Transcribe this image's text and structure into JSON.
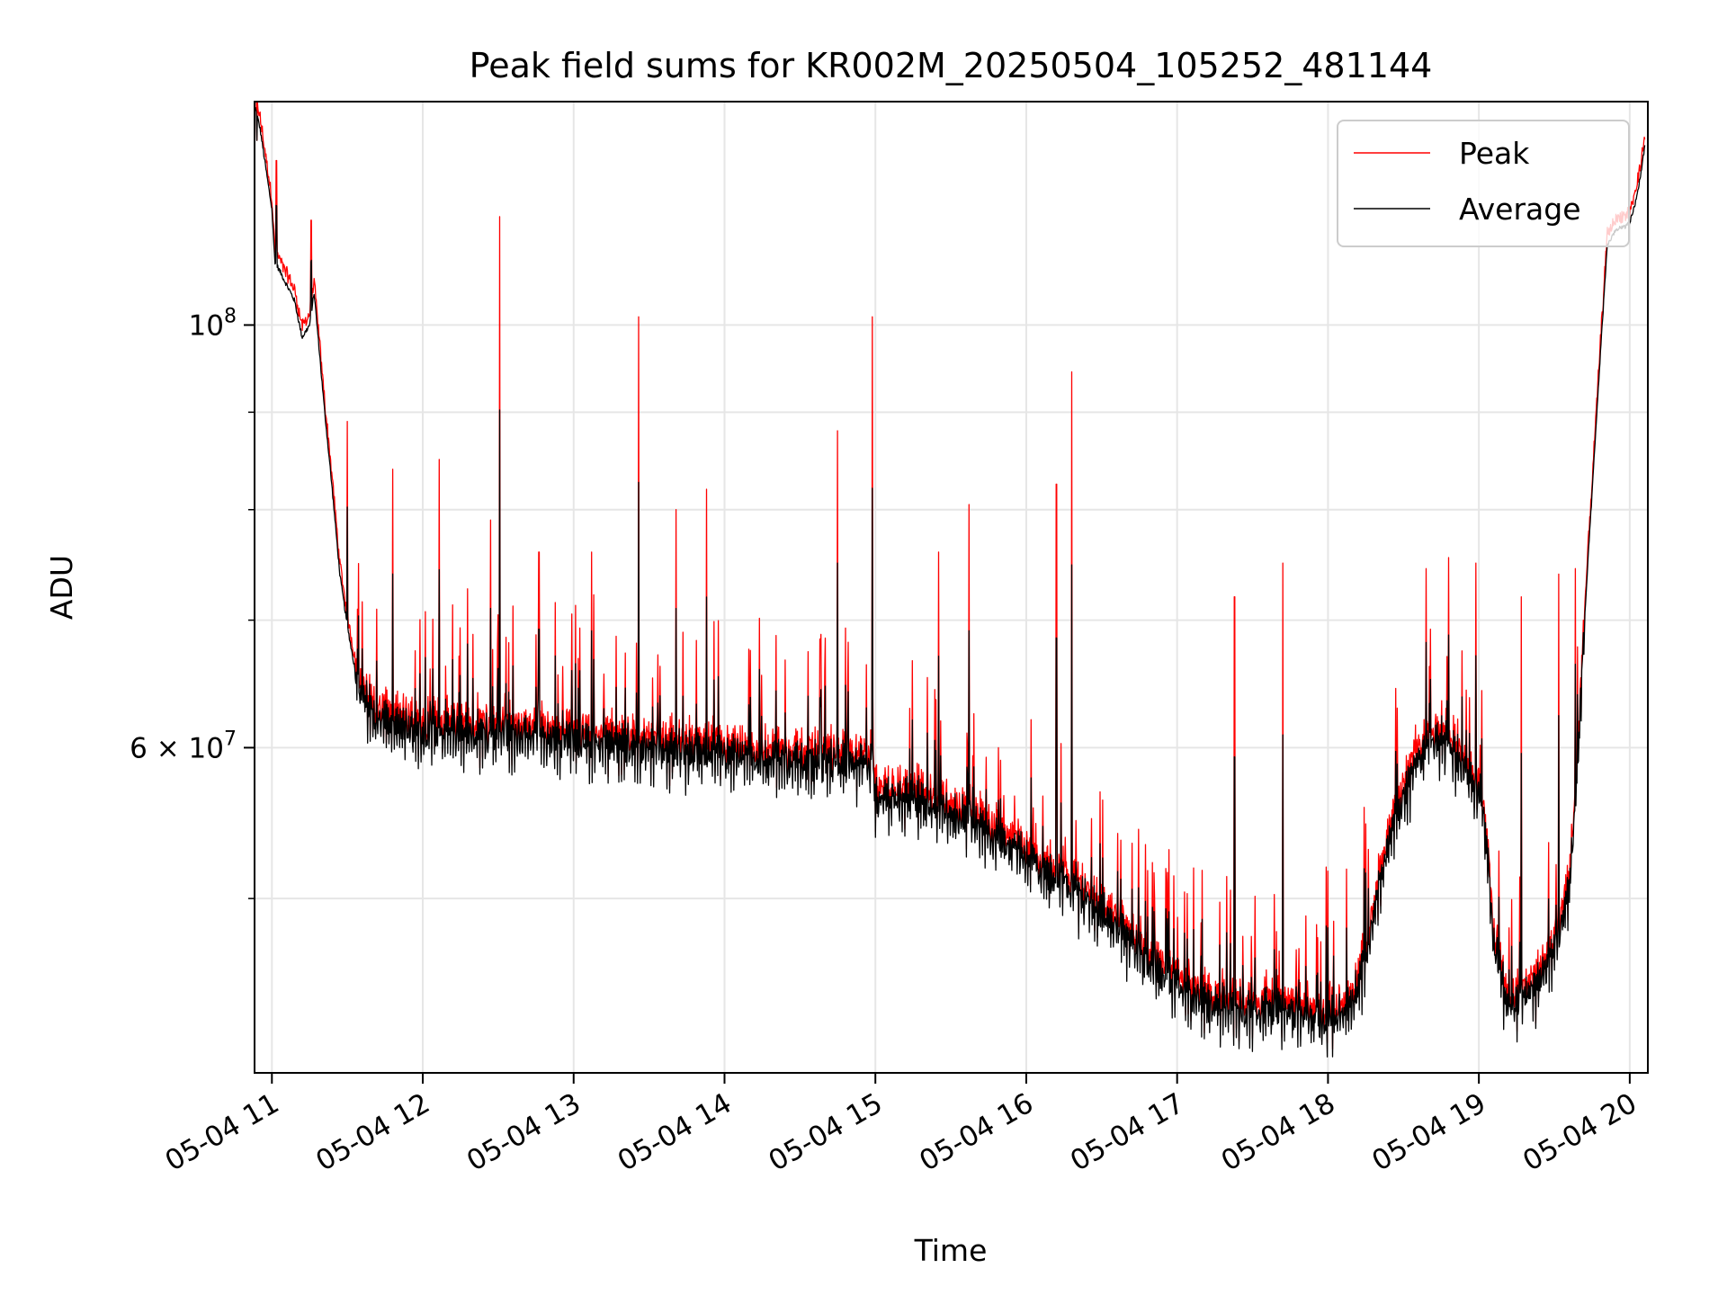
{
  "chart_data": {
    "type": "line",
    "title": "Peak field sums for KR002M_20250504_105252_481144",
    "xlabel": "Time",
    "ylabel": "ADU",
    "x_unit": "hours (decimal hour of day, 2025-05-04)",
    "xlim": [
      10.885,
      20.12
    ],
    "ylim": [
      40500000,
      131000000
    ],
    "yscale": "log",
    "grid": true,
    "legend_position": "top-right",
    "x_ticks": [
      {
        "value": 11,
        "label": "05-04 11"
      },
      {
        "value": 12,
        "label": "05-04 12"
      },
      {
        "value": 13,
        "label": "05-04 13"
      },
      {
        "value": 14,
        "label": "05-04 14"
      },
      {
        "value": 15,
        "label": "05-04 15"
      },
      {
        "value": 16,
        "label": "05-04 16"
      },
      {
        "value": 17,
        "label": "05-04 17"
      },
      {
        "value": 18,
        "label": "05-04 18"
      },
      {
        "value": 19,
        "label": "05-04 19"
      },
      {
        "value": 20,
        "label": "05-04 20"
      }
    ],
    "y_major_ticks": [
      {
        "value": 100000000,
        "base": "10",
        "exp": "8"
      },
      {
        "value": 60000000,
        "base": "6 × 10",
        "exp": "7"
      }
    ],
    "y_minor_ticks": [
      50000000,
      70000000,
      80000000,
      90000000
    ],
    "series": [
      {
        "name": "Peak",
        "color": "#ff0000"
      },
      {
        "name": "Average",
        "color": "#000000"
      }
    ],
    "baseline": {
      "x": [
        10.89,
        10.92,
        11.0,
        11.02,
        11.15,
        11.2,
        11.25,
        11.28,
        11.35,
        11.4,
        11.45,
        11.5,
        11.55,
        11.6,
        11.7,
        11.8,
        12.0,
        12.5,
        13.0,
        13.5,
        14.0,
        14.5,
        14.98,
        15.0,
        15.3,
        15.6,
        15.9,
        16.1,
        16.3,
        16.6,
        16.8,
        17.0,
        17.2,
        17.4,
        17.6,
        17.8,
        18.0,
        18.1,
        18.2,
        18.3,
        18.4,
        18.6,
        18.7,
        18.8,
        19.0,
        19.05,
        19.1,
        19.2,
        19.3,
        19.4,
        19.5,
        19.6,
        19.65,
        19.7,
        19.8,
        19.85,
        19.9,
        20.0,
        20.05,
        20.1
      ],
      "y": [
        130000000,
        127000000,
        115000000,
        108000000,
        103000000,
        98500000,
        100000000,
        104000000,
        90000000,
        82000000,
        74000000,
        69500000,
        66000000,
        64000000,
        62500000,
        61800000,
        61500000,
        61200000,
        60800000,
        60200000,
        59600000,
        59200000,
        59000000,
        56800000,
        56500000,
        55300000,
        53500000,
        52000000,
        50800000,
        48600000,
        46500000,
        45200000,
        44200000,
        43800000,
        44000000,
        43500000,
        43300000,
        43700000,
        45000000,
        49000000,
        54000000,
        59500000,
        61200000,
        60500000,
        57000000,
        54000000,
        47500000,
        44000000,
        44500000,
        45500000,
        47000000,
        51000000,
        58000000,
        70000000,
        95000000,
        110000000,
        112000000,
        113000000,
        117000000,
        124000000
      ]
    },
    "peak_spikes": [
      {
        "x": 10.9,
        "y": 125000000
      },
      {
        "x": 11.03,
        "y": 122000000
      },
      {
        "x": 11.26,
        "y": 113500000
      },
      {
        "x": 11.5,
        "y": 89000000
      },
      {
        "x": 11.8,
        "y": 84000000
      },
      {
        "x": 12.11,
        "y": 85000000
      },
      {
        "x": 12.45,
        "y": 79000000
      },
      {
        "x": 12.51,
        "y": 114000000
      },
      {
        "x": 12.77,
        "y": 76000000
      },
      {
        "x": 13.12,
        "y": 76000000
      },
      {
        "x": 13.43,
        "y": 101000000
      },
      {
        "x": 13.68,
        "y": 80000000
      },
      {
        "x": 13.88,
        "y": 82000000
      },
      {
        "x": 14.75,
        "y": 88000000
      },
      {
        "x": 14.98,
        "y": 101000000
      },
      {
        "x": 15.42,
        "y": 76000000
      },
      {
        "x": 15.62,
        "y": 80500000
      },
      {
        "x": 16.2,
        "y": 82500000
      },
      {
        "x": 16.3,
        "y": 94500000
      },
      {
        "x": 17.38,
        "y": 72000000
      },
      {
        "x": 17.7,
        "y": 75000000
      },
      {
        "x": 18.65,
        "y": 74500000
      },
      {
        "x": 18.8,
        "y": 75500000
      },
      {
        "x": 18.98,
        "y": 75000000
      },
      {
        "x": 19.28,
        "y": 72000000
      },
      {
        "x": 19.53,
        "y": 74000000
      },
      {
        "x": 19.64,
        "y": 74500000
      }
    ]
  }
}
